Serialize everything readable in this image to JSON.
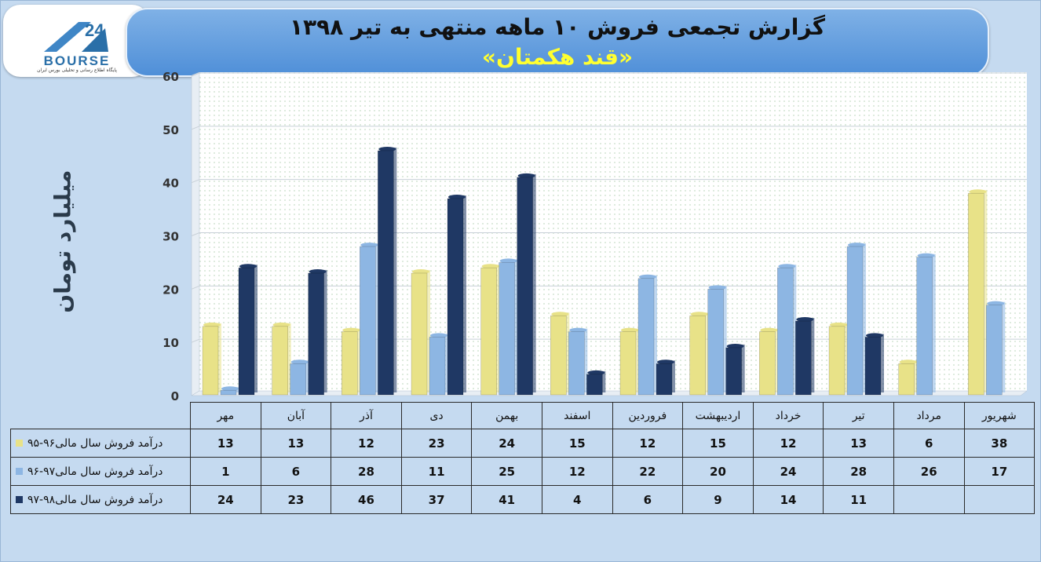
{
  "header": {
    "title": "گزارش تجمعی فروش ۱۰ ماهه منتهی به تیر ۱۳۹۸",
    "subtitle": "«قند هکمتان»"
  },
  "logo": {
    "wordmark": "BOURSE",
    "tagline": "پایگاه اطلاع رسانی و تحلیلی بورس ایران",
    "mark": "24"
  },
  "colors": {
    "series": [
      "#e8e288",
      "#8db6e3",
      "#1f3864"
    ],
    "grid_dots": "#c7ddc7",
    "plot_bg": "#ffffff"
  },
  "chart_data": {
    "type": "bar",
    "ylabel": "میلیارد تومان",
    "xlabel": "",
    "ylim": [
      0,
      60
    ],
    "yticks": [
      "0",
      "10",
      "20",
      "30",
      "40",
      "50",
      "60"
    ],
    "grid": true,
    "legend": "table-below",
    "categories": [
      "مهر",
      "آبان",
      "آذر",
      "دی",
      "بهمن",
      "اسفند",
      "فروردین",
      "اردیبهشت",
      "خرداد",
      "تیر",
      "مرداد",
      "شهریور"
    ],
    "series": [
      {
        "name": "درآمد فروش سال مالی۹۶-۹۵",
        "values": [
          13,
          13,
          12,
          23,
          24,
          15,
          12,
          15,
          12,
          13,
          6,
          38
        ]
      },
      {
        "name": "درآمد فروش سال مالی۹۷-۹۶",
        "values": [
          1,
          6,
          28,
          11,
          25,
          12,
          22,
          20,
          24,
          28,
          26,
          17
        ]
      },
      {
        "name": "درآمد فروش سال مالی۹۸-۹۷",
        "values": [
          24,
          23,
          46,
          37,
          41,
          4,
          6,
          9,
          14,
          11,
          null,
          null
        ]
      }
    ]
  }
}
